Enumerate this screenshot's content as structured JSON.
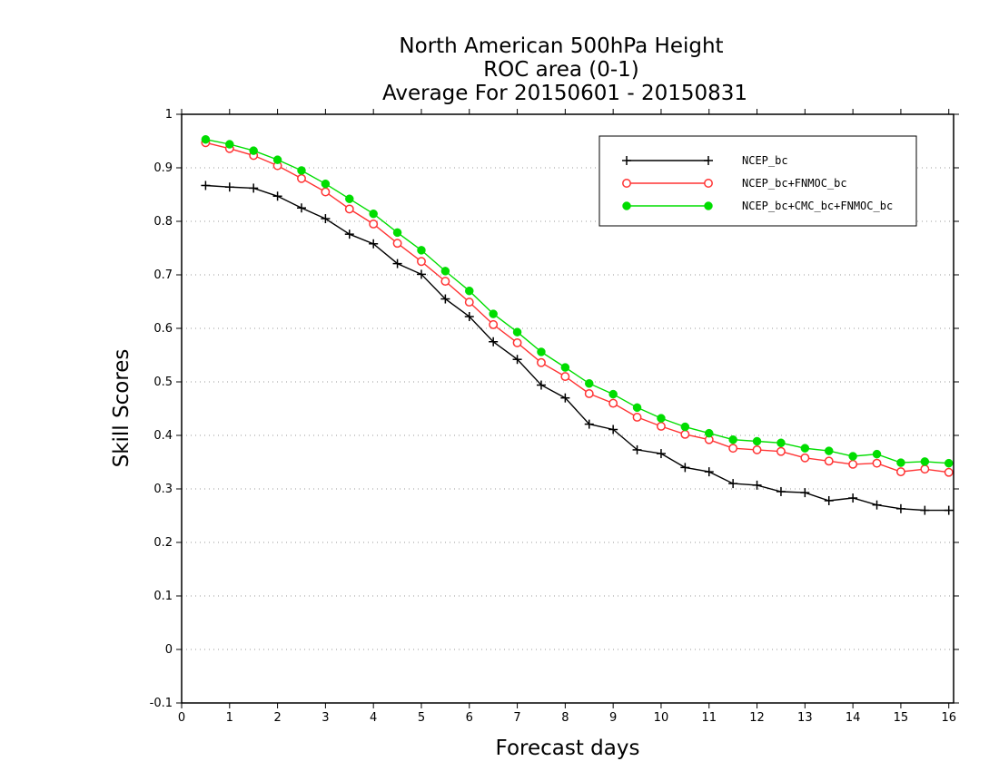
{
  "chart_data": {
    "type": "line",
    "title": [
      "North American 500hPa Height",
      "ROC area (0-1)",
      "Average For 20150601 - 20150831"
    ],
    "xlabel": "Forecast days",
    "ylabel": "Skill Scores",
    "xlim": [
      0,
      16.1
    ],
    "ylim": [
      -0.1,
      1
    ],
    "xticks": [
      0,
      1,
      2,
      3,
      4,
      5,
      6,
      7,
      8,
      9,
      10,
      11,
      12,
      13,
      14,
      15,
      16
    ],
    "yticks": [
      -0.1,
      0,
      0.1,
      0.2,
      0.3,
      0.4,
      0.5,
      0.6,
      0.7,
      0.8,
      0.9,
      1
    ],
    "ytick_labels": [
      "-0.1",
      "0",
      "0.1",
      "0.2",
      "0.3",
      "0.4",
      "0.5",
      "0.6",
      "0.7",
      "0.8",
      "0.9",
      "1"
    ],
    "grid": "horizontal dotted",
    "legend_position": "top-right",
    "x": [
      0.5,
      1,
      1.5,
      2,
      2.5,
      3,
      3.5,
      4,
      4.5,
      5,
      5.5,
      6,
      6.5,
      7,
      7.5,
      8,
      8.5,
      9,
      9.5,
      10,
      10.5,
      11,
      11.5,
      12,
      12.5,
      13,
      13.5,
      14,
      14.5,
      15,
      15.5,
      16
    ],
    "series": [
      {
        "name": "NCEP_bc",
        "color": "#000000",
        "marker": "plus",
        "values": [
          0.867,
          0.864,
          0.862,
          0.847,
          0.825,
          0.805,
          0.776,
          0.758,
          0.721,
          0.701,
          0.655,
          0.622,
          0.575,
          0.542,
          0.494,
          0.47,
          0.421,
          0.411,
          0.373,
          0.366,
          0.34,
          0.332,
          0.31,
          0.307,
          0.295,
          0.293,
          0.278,
          0.283,
          0.27,
          0.263,
          0.26,
          0.26
        ]
      },
      {
        "name": "NCEP_bc+FNMOC_bc",
        "color": "#ff3333",
        "marker": "open-circle",
        "values": [
          0.947,
          0.936,
          0.923,
          0.904,
          0.88,
          0.855,
          0.823,
          0.795,
          0.759,
          0.725,
          0.688,
          0.649,
          0.607,
          0.573,
          0.536,
          0.51,
          0.478,
          0.46,
          0.434,
          0.417,
          0.402,
          0.392,
          0.376,
          0.373,
          0.37,
          0.358,
          0.352,
          0.346,
          0.348,
          0.332,
          0.337,
          0.331
        ]
      },
      {
        "name": "NCEP_bc+CMC_bc+FNMOC_bc",
        "color": "#00dd00",
        "marker": "filled-circle",
        "values": [
          0.953,
          0.944,
          0.932,
          0.915,
          0.895,
          0.87,
          0.842,
          0.814,
          0.779,
          0.746,
          0.707,
          0.67,
          0.627,
          0.593,
          0.556,
          0.527,
          0.497,
          0.477,
          0.452,
          0.432,
          0.416,
          0.404,
          0.392,
          0.389,
          0.386,
          0.376,
          0.371,
          0.361,
          0.365,
          0.349,
          0.351,
          0.348
        ]
      }
    ]
  }
}
